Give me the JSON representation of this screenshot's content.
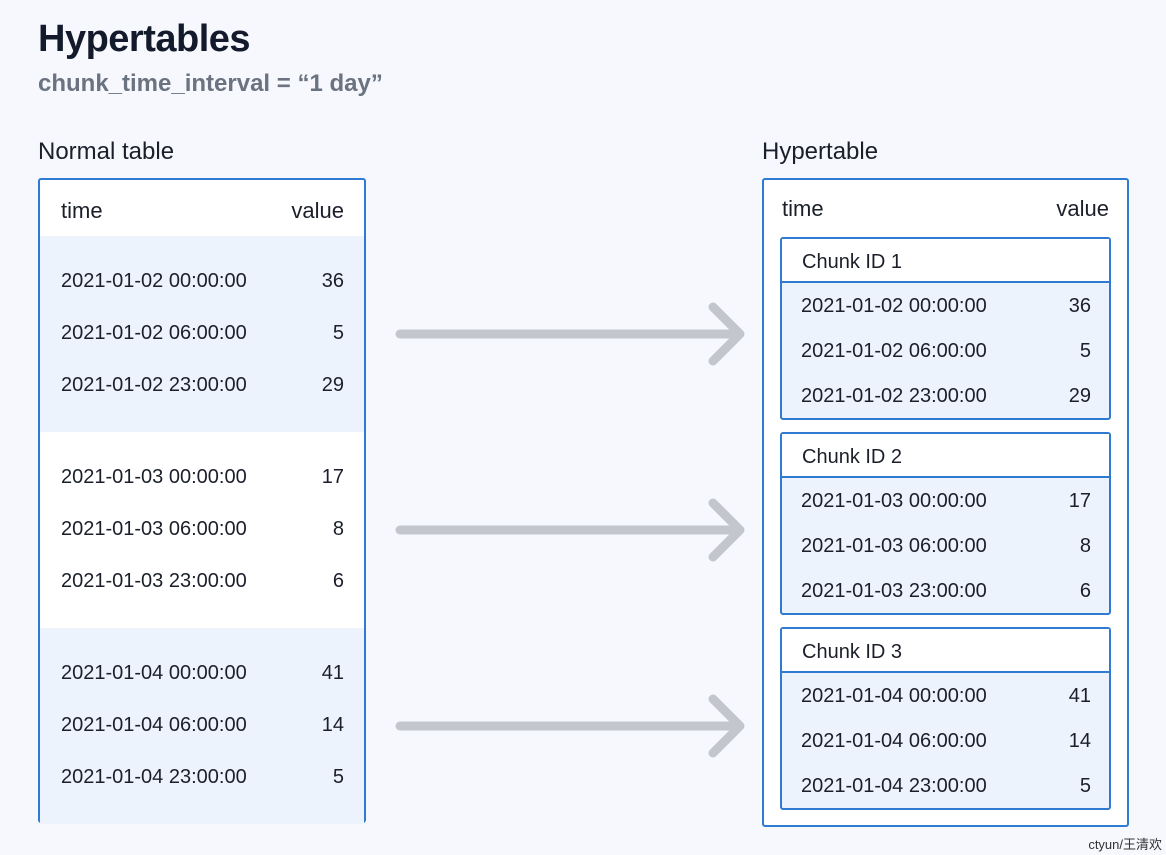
{
  "title": "Hypertables",
  "subtitle": "chunk_time_interval = “1 day”",
  "normal_table": {
    "label": "Normal table",
    "col_time": "time",
    "col_value": "value",
    "groups": [
      {
        "rows": [
          {
            "time": "2021-01-02 00:00:00",
            "value": "36"
          },
          {
            "time": "2021-01-02 06:00:00",
            "value": "5"
          },
          {
            "time": "2021-01-02 23:00:00",
            "value": "29"
          }
        ]
      },
      {
        "rows": [
          {
            "time": "2021-01-03 00:00:00",
            "value": "17"
          },
          {
            "time": "2021-01-03 06:00:00",
            "value": "8"
          },
          {
            "time": "2021-01-03 23:00:00",
            "value": "6"
          }
        ]
      },
      {
        "rows": [
          {
            "time": "2021-01-04 00:00:00",
            "value": "41"
          },
          {
            "time": "2021-01-04 06:00:00",
            "value": "14"
          },
          {
            "time": "2021-01-04 23:00:00",
            "value": "5"
          }
        ]
      }
    ]
  },
  "hypertable": {
    "label": "Hypertable",
    "col_time": "time",
    "col_value": "value",
    "chunks": [
      {
        "name": "Chunk ID 1",
        "rows": [
          {
            "time": "2021-01-02 00:00:00",
            "value": "36"
          },
          {
            "time": "2021-01-02 06:00:00",
            "value": "5"
          },
          {
            "time": "2021-01-02 23:00:00",
            "value": "29"
          }
        ]
      },
      {
        "name": "Chunk ID 2",
        "rows": [
          {
            "time": "2021-01-03 00:00:00",
            "value": "17"
          },
          {
            "time": "2021-01-03 06:00:00",
            "value": "8"
          },
          {
            "time": "2021-01-03 23:00:00",
            "value": "6"
          }
        ]
      },
      {
        "name": "Chunk ID 3",
        "rows": [
          {
            "time": "2021-01-04 00:00:00",
            "value": "41"
          },
          {
            "time": "2021-01-04 06:00:00",
            "value": "14"
          },
          {
            "time": "2021-01-04 23:00:00",
            "value": "5"
          }
        ]
      }
    ]
  },
  "colors": {
    "border": "#2f7bd1",
    "shade": "#ecf3fd",
    "arrow": "#c3c6cc"
  },
  "watermark": "ctyun/王清欢"
}
